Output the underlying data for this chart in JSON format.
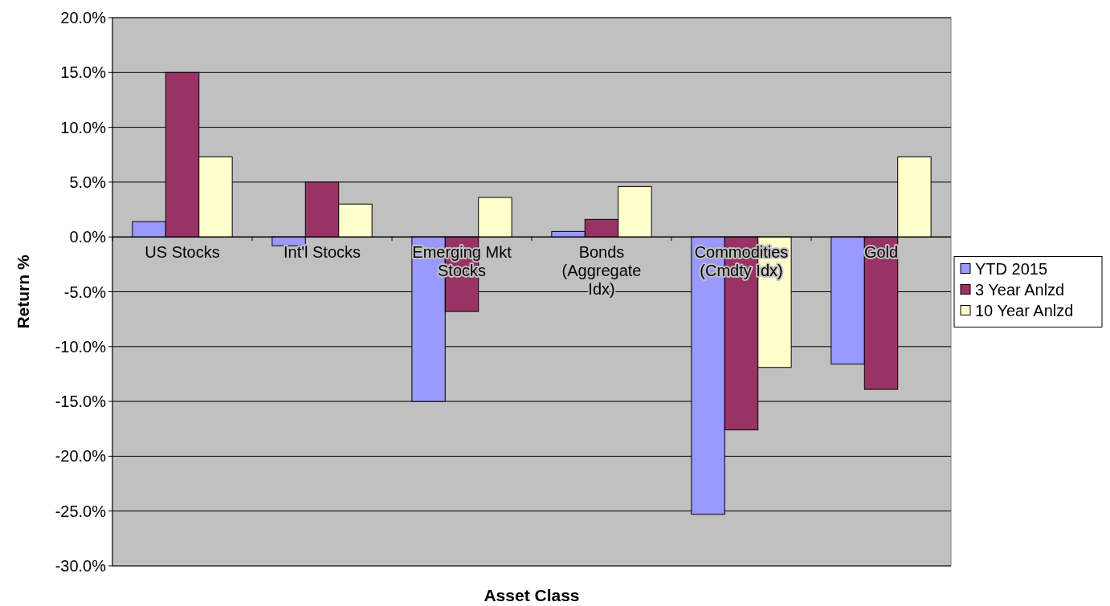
{
  "chart_data": {
    "type": "bar",
    "xlabel": "Asset Class",
    "ylabel": "Return %",
    "categories": [
      "US Stocks",
      "Int'l Stocks",
      "Emerging Mkt Stocks",
      "Bonds (Aggregate Idx)",
      "Commodities (Cmdty Idx)",
      "Gold"
    ],
    "series": [
      {
        "name": "YTD 2015",
        "color": "#9999ff",
        "values": [
          1.4,
          -0.8,
          -15.0,
          0.5,
          -25.3,
          -11.6
        ]
      },
      {
        "name": "3 Year Anlzd",
        "color": "#993366",
        "values": [
          15.0,
          5.0,
          -6.8,
          1.6,
          -17.6,
          -13.9
        ]
      },
      {
        "name": "10 Year Anlzd",
        "color": "#ffffcc",
        "values": [
          7.3,
          3.0,
          3.6,
          4.6,
          -11.9,
          7.3
        ]
      }
    ],
    "ylim": [
      -30,
      20
    ],
    "yticks": [
      {
        "value": -30,
        "label": "-30.0%"
      },
      {
        "value": -25,
        "label": "-25.0%"
      },
      {
        "value": -20,
        "label": "-20.0%"
      },
      {
        "value": -15,
        "label": "-15.0%"
      },
      {
        "value": -10,
        "label": "-10.0%"
      },
      {
        "value": -5,
        "label": "-5.0%"
      },
      {
        "value": 0,
        "label": "0.0%"
      },
      {
        "value": 5,
        "label": "5.0%"
      },
      {
        "value": 10,
        "label": "10.0%"
      },
      {
        "value": 15,
        "label": "15.0%"
      },
      {
        "value": 20,
        "label": "20.0%"
      }
    ],
    "grid": "y",
    "legend": "right"
  }
}
